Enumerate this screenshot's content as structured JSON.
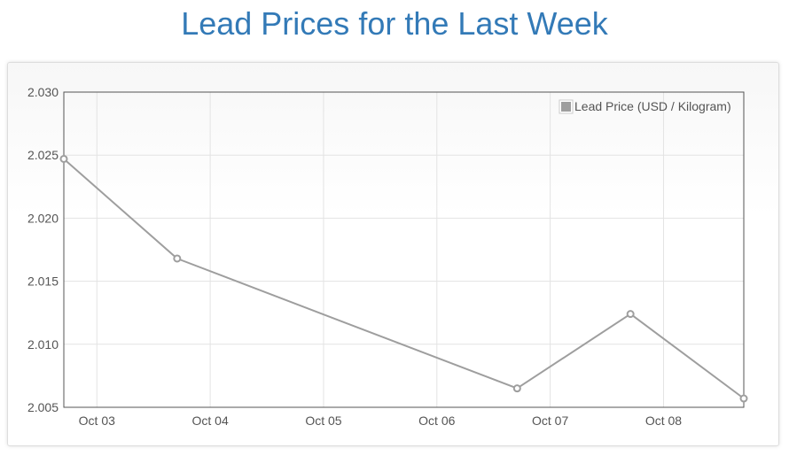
{
  "page": {
    "title": "Lead Prices for the Last Week"
  },
  "colors": {
    "title": "#337ab7",
    "series": "#9e9e9e",
    "grid": "#e3e3e3",
    "axis": "#545454"
  },
  "chart_data": {
    "type": "line",
    "title": "Lead Prices for the Last Week",
    "xlabel": "",
    "ylabel": "",
    "x_ticks": [
      "Oct 03",
      "Oct 04",
      "Oct 05",
      "Oct 06",
      "Oct 07",
      "Oct 08"
    ],
    "y_ticks": [
      "2.030",
      "2.025",
      "2.020",
      "2.015",
      "2.010",
      "2.005"
    ],
    "xlim": [
      "Oct 02 17:00",
      "Oct 08 17:00"
    ],
    "ylim": [
      2.005,
      2.03
    ],
    "grid": true,
    "legend_position": "top-right",
    "series": [
      {
        "name": "Lead Price (USD / Kilogram)",
        "points": [
          {
            "x": "Oct 02 17:00",
            "y": 2.0247
          },
          {
            "x": "Oct 03 17:00",
            "y": 2.0168
          },
          {
            "x": "Oct 06 17:00",
            "y": 2.0065
          },
          {
            "x": "Oct 07 17:00",
            "y": 2.0124
          },
          {
            "x": "Oct 08 17:00",
            "y": 2.0057
          }
        ]
      }
    ]
  }
}
